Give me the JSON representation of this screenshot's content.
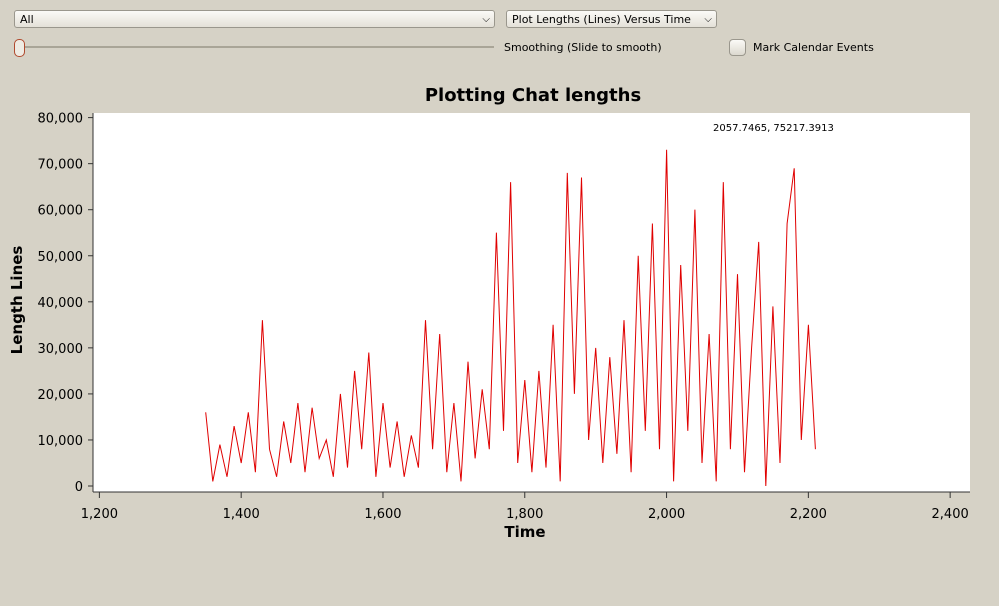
{
  "controls": {
    "filter": "All",
    "plot_mode": "Plot Lengths (Lines) Versus Time",
    "smoothing_label": "Smoothing (Slide to smooth)",
    "calendar_label": "Mark Calendar Events"
  },
  "chart_data": {
    "type": "line",
    "title": "Plotting Chat lengths",
    "xlabel": "Time",
    "ylabel": "Length Lines",
    "annotation": "2057.7465, 75217.3913",
    "color": "#e00000",
    "x": [
      1350,
      1360,
      1370,
      1380,
      1390,
      1400,
      1410,
      1420,
      1430,
      1440,
      1450,
      1460,
      1470,
      1480,
      1490,
      1500,
      1510,
      1520,
      1530,
      1540,
      1550,
      1560,
      1570,
      1580,
      1590,
      1600,
      1610,
      1620,
      1630,
      1640,
      1650,
      1660,
      1670,
      1680,
      1690,
      1700,
      1710,
      1720,
      1730,
      1740,
      1750,
      1760,
      1770,
      1780,
      1790,
      1800,
      1810,
      1820,
      1830,
      1840,
      1850,
      1860,
      1870,
      1880,
      1890,
      1900,
      1910,
      1920,
      1930,
      1940,
      1950,
      1960,
      1970,
      1980,
      1990,
      2000,
      2010,
      2020,
      2030,
      2040,
      2050,
      2060,
      2070,
      2080,
      2090,
      2100,
      2110,
      2120,
      2130,
      2140,
      2150,
      2160,
      2170,
      2180,
      2190,
      2200,
      2210
    ],
    "values": [
      16000,
      1000,
      9000,
      2000,
      13000,
      5000,
      16000,
      3000,
      36000,
      8000,
      2000,
      14000,
      5000,
      18000,
      3000,
      17000,
      6000,
      10000,
      2000,
      20000,
      4000,
      25000,
      8000,
      29000,
      2000,
      18000,
      4000,
      14000,
      2000,
      11000,
      4000,
      36000,
      8000,
      33000,
      3000,
      18000,
      1000,
      27000,
      6000,
      21000,
      8000,
      55000,
      12000,
      66000,
      5000,
      23000,
      3000,
      25000,
      4000,
      35000,
      1000,
      68000,
      20000,
      67000,
      10000,
      30000,
      5000,
      28000,
      7000,
      36000,
      3000,
      50000,
      12000,
      57000,
      8000,
      73000,
      1000,
      48000,
      12000,
      60000,
      5000,
      33000,
      1000,
      66000,
      8000,
      46000,
      3000,
      30000,
      53000,
      0,
      39000,
      5000,
      57000,
      69000,
      10000,
      35000,
      8000
    ],
    "xlim": [
      1191,
      2428
    ],
    "ylim": [
      -1300,
      81000
    ],
    "xticks": [
      {
        "value": 1200,
        "label": "1,200"
      },
      {
        "value": 1400,
        "label": "1,400"
      },
      {
        "value": 1600,
        "label": "1,600"
      },
      {
        "value": 1800,
        "label": "1,800"
      },
      {
        "value": 2000,
        "label": "2,000"
      },
      {
        "value": 2200,
        "label": "2,200"
      },
      {
        "value": 2400,
        "label": "2,400"
      }
    ],
    "yticks": [
      0,
      {
        "value": 10000,
        "label": "10,000"
      },
      {
        "value": 20000,
        "label": "20,000"
      },
      {
        "value": 30000,
        "label": "30,000"
      },
      {
        "value": 40000,
        "label": "40,000"
      },
      {
        "value": 50000,
        "label": "50,000"
      },
      {
        "value": 60000,
        "label": "60,000"
      },
      {
        "value": 70000,
        "label": "70,000"
      },
      {
        "value": 80000,
        "label": "80,000"
      }
    ]
  }
}
